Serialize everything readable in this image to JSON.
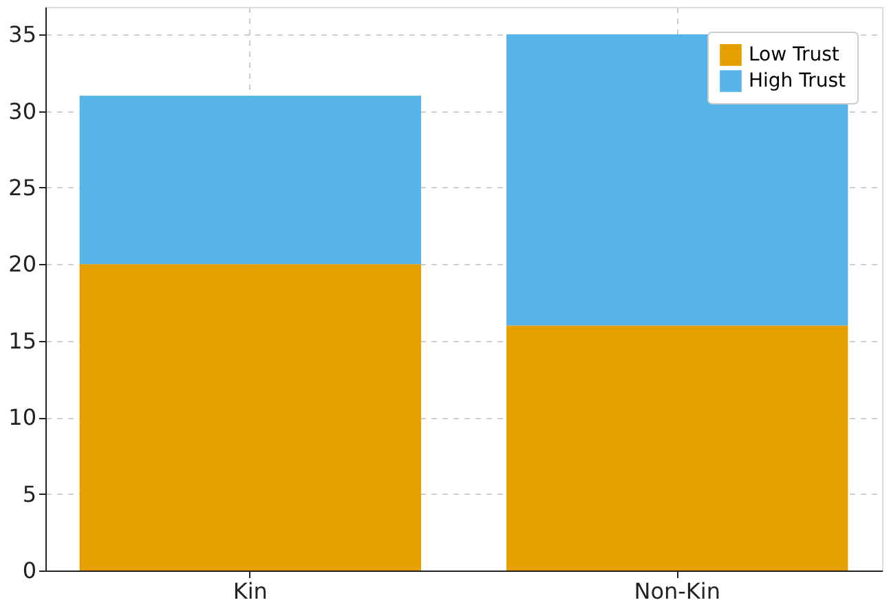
{
  "chart_data": {
    "type": "bar",
    "stacked": true,
    "categories": [
      "Kin",
      "Non-Kin"
    ],
    "series": [
      {
        "name": "Low Trust",
        "color": "#e69f00",
        "values": [
          20,
          16
        ]
      },
      {
        "name": "High Trust",
        "color": "#56b4e9",
        "values": [
          11,
          19
        ]
      }
    ],
    "ylim": [
      0,
      36.8
    ],
    "yticks": [
      0,
      5,
      10,
      15,
      20,
      25,
      30,
      35
    ],
    "grid": true,
    "legend": "top right"
  }
}
